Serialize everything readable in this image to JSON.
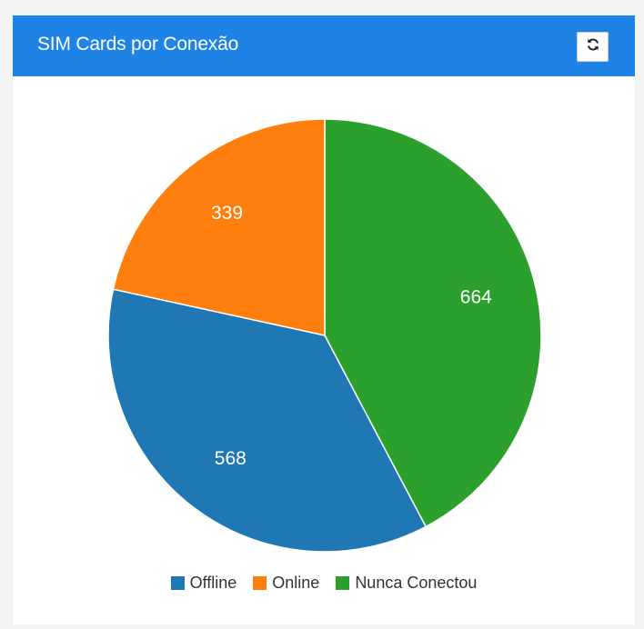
{
  "header": {
    "title": "SIM Cards por Conexão",
    "refresh_icon": "refresh-icon"
  },
  "colors": {
    "header_bg": "#1f83e6",
    "offline": "#1f77b4",
    "online": "#ff7f0e",
    "nunca_conectou": "#2ca02c"
  },
  "chart_data": {
    "type": "pie",
    "title": "SIM Cards por Conexão",
    "categories": [
      "Offline",
      "Online",
      "Nunca Conectou"
    ],
    "values": [
      568,
      339,
      664
    ],
    "colors": [
      "#1f77b4",
      "#ff7f0e",
      "#2ca02c"
    ],
    "legend_position": "bottom"
  }
}
